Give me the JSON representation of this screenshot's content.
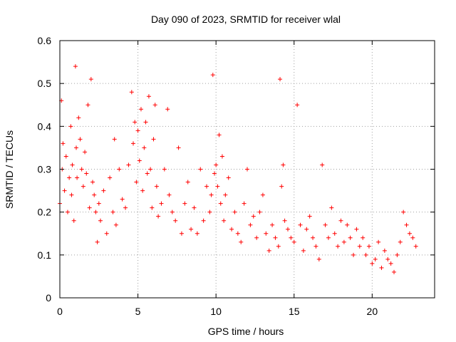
{
  "chart_data": {
    "type": "scatter",
    "title": "Day 090 of 2023, SRMTID for receiver wlal",
    "xlabel": "GPS time / hours",
    "ylabel": "SRMTID / TECUs",
    "xlim": [
      0,
      24
    ],
    "ylim": [
      0,
      0.6
    ],
    "xticks": [
      0,
      5,
      10,
      15,
      20
    ],
    "xtick_labels": [
      "0",
      "5",
      "10",
      "15",
      "20"
    ],
    "yticks": [
      0,
      0.1,
      0.2,
      0.3,
      0.4,
      0.5,
      0.6
    ],
    "ytick_labels": [
      "0",
      "0.1",
      "0.2",
      "0.3",
      "0.4",
      "0.5",
      "0.6"
    ],
    "grid": true,
    "marker": "plus",
    "color": "#ff0000",
    "series": [
      {
        "name": "SRMTID",
        "x": [
          0.0,
          0.1,
          0.15,
          0.2,
          0.3,
          0.4,
          0.5,
          0.6,
          0.7,
          0.75,
          0.8,
          0.9,
          1.0,
          1.05,
          1.1,
          1.2,
          1.3,
          1.4,
          1.5,
          1.6,
          1.7,
          1.8,
          1.9,
          2.0,
          2.1,
          2.2,
          2.3,
          2.4,
          2.5,
          2.6,
          2.8,
          3.0,
          3.2,
          3.4,
          3.5,
          3.6,
          3.8,
          4.0,
          4.2,
          4.4,
          4.6,
          4.7,
          4.8,
          4.9,
          5.0,
          5.1,
          5.2,
          5.3,
          5.4,
          5.5,
          5.6,
          5.7,
          5.8,
          5.9,
          6.0,
          6.1,
          6.2,
          6.3,
          6.5,
          6.7,
          6.9,
          7.0,
          7.2,
          7.4,
          7.6,
          7.8,
          8.0,
          8.2,
          8.4,
          8.6,
          8.8,
          9.0,
          9.2,
          9.4,
          9.6,
          9.7,
          9.8,
          9.9,
          10.0,
          10.1,
          10.2,
          10.3,
          10.4,
          10.5,
          10.6,
          10.8,
          11.0,
          11.2,
          11.4,
          11.6,
          11.8,
          12.0,
          12.2,
          12.4,
          12.6,
          12.8,
          13.0,
          13.2,
          13.4,
          13.6,
          13.8,
          14.0,
          14.1,
          14.2,
          14.3,
          14.4,
          14.6,
          14.8,
          15.0,
          15.2,
          15.4,
          15.6,
          15.8,
          16.0,
          16.2,
          16.4,
          16.6,
          16.8,
          17.0,
          17.2,
          17.4,
          17.6,
          17.8,
          18.0,
          18.2,
          18.4,
          18.6,
          18.8,
          19.0,
          19.2,
          19.4,
          19.6,
          19.8,
          20.0,
          20.2,
          20.4,
          20.6,
          20.8,
          21.0,
          21.2,
          21.4,
          21.6,
          21.8,
          22.0,
          22.2,
          22.4,
          22.6,
          22.8
        ],
        "y": [
          0.22,
          0.46,
          0.3,
          0.36,
          0.25,
          0.33,
          0.2,
          0.28,
          0.4,
          0.24,
          0.31,
          0.18,
          0.54,
          0.35,
          0.28,
          0.42,
          0.37,
          0.3,
          0.26,
          0.34,
          0.29,
          0.45,
          0.21,
          0.51,
          0.27,
          0.24,
          0.2,
          0.13,
          0.22,
          0.18,
          0.25,
          0.15,
          0.28,
          0.2,
          0.37,
          0.17,
          0.3,
          0.23,
          0.21,
          0.31,
          0.48,
          0.36,
          0.41,
          0.27,
          0.39,
          0.32,
          0.44,
          0.25,
          0.35,
          0.41,
          0.29,
          0.47,
          0.3,
          0.21,
          0.37,
          0.45,
          0.26,
          0.19,
          0.22,
          0.3,
          0.44,
          0.24,
          0.2,
          0.18,
          0.35,
          0.15,
          0.22,
          0.27,
          0.16,
          0.21,
          0.15,
          0.3,
          0.18,
          0.26,
          0.2,
          0.24,
          0.52,
          0.29,
          0.31,
          0.26,
          0.38,
          0.22,
          0.33,
          0.18,
          0.24,
          0.28,
          0.16,
          0.2,
          0.15,
          0.13,
          0.22,
          0.3,
          0.17,
          0.19,
          0.14,
          0.2,
          0.24,
          0.15,
          0.11,
          0.17,
          0.14,
          0.12,
          0.51,
          0.26,
          0.31,
          0.18,
          0.16,
          0.14,
          0.13,
          0.45,
          0.17,
          0.11,
          0.16,
          0.19,
          0.14,
          0.12,
          0.09,
          0.31,
          0.17,
          0.14,
          0.21,
          0.15,
          0.12,
          0.18,
          0.13,
          0.17,
          0.14,
          0.1,
          0.16,
          0.12,
          0.14,
          0.1,
          0.12,
          0.08,
          0.09,
          0.13,
          0.07,
          0.11,
          0.09,
          0.08,
          0.06,
          0.1,
          0.13,
          0.2,
          0.17,
          0.15,
          0.14,
          0.12
        ]
      }
    ]
  }
}
